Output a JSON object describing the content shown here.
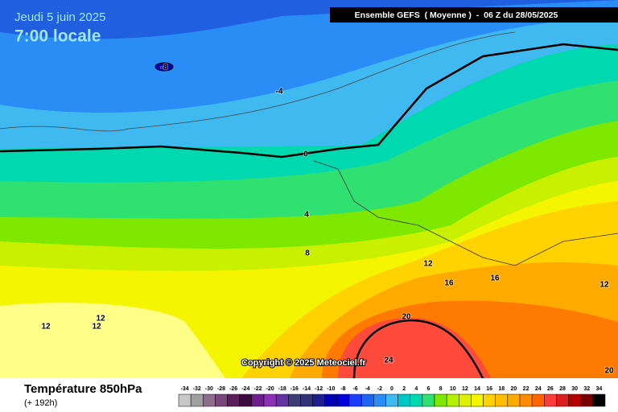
{
  "header": {
    "date": "Jeudi 5 juin 2025",
    "time": "7:00 locale",
    "model": "Ensemble GEFS  ( Moyenne )  -  06 Z du 28/05/2025"
  },
  "footer": {
    "title": "Température 850hPa",
    "lead": "(+ 192h)",
    "copyright": "Copyright © 2025 Meteociel.fr"
  },
  "scale": {
    "values": [
      -34,
      -32,
      -30,
      -28,
      -26,
      -24,
      -22,
      -20,
      -18,
      -16,
      -14,
      -12,
      -10,
      -8,
      -6,
      -4,
      -2,
      0,
      2,
      4,
      6,
      8,
      10,
      12,
      14,
      16,
      18,
      20,
      22,
      24,
      26,
      28,
      30,
      32,
      34
    ],
    "colors": [
      "#c8c8c8",
      "#a0a0a0",
      "#8c6e8c",
      "#784678",
      "#5a1e5a",
      "#3c0a3c",
      "#6e1e8c",
      "#8c32b4",
      "#6432a0",
      "#3c3c78",
      "#32327a",
      "#1e1e8c",
      "#0000b4",
      "#0000dc",
      "#1e3cff",
      "#1e64f0",
      "#2a8cf5",
      "#40b8f0",
      "#00c8c8",
      "#00d8b0",
      "#30e070",
      "#7ee800",
      "#b4f000",
      "#dcf000",
      "#f5f500",
      "#ffd200",
      "#ffbe00",
      "#ffaa00",
      "#ff8c00",
      "#ff6400",
      "#ff3c3c",
      "#dc1e1e",
      "#b40000",
      "#780000",
      "#000000"
    ]
  },
  "contour_labels": [
    -8,
    -4,
    0,
    4,
    8,
    12,
    12,
    12,
    12,
    16,
    16,
    12,
    20,
    24,
    20
  ]
}
